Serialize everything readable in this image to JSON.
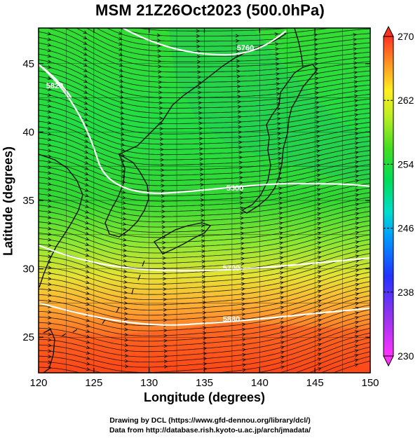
{
  "title": "MSM 21Z26Oct2023 (500.0hPa)",
  "chart_data": {
    "type": "map-streamlines",
    "x_axis": {
      "label": "Longitude (degrees)",
      "range": [
        120,
        150
      ],
      "ticks": [
        "120",
        "125",
        "130",
        "135",
        "140",
        "145",
        "150"
      ]
    },
    "y_axis": {
      "label": "Latitude  (degrees)",
      "range": [
        22.4,
        47.6
      ],
      "ticks": [
        "25",
        "30",
        "35",
        "40",
        "45"
      ]
    },
    "grid": true,
    "colorbar": {
      "min": 230,
      "max": 270,
      "tick_labels": [
        "270",
        "262",
        "254",
        "246",
        "238",
        "230"
      ],
      "position": "right"
    },
    "contour_labels": [
      "5880",
      "5700",
      "5500",
      "5820",
      "5760"
    ],
    "colors": {
      "warm": "#ff2a00",
      "cool": "#00cc33",
      "contour": "#ffffff",
      "coast": "#000000"
    }
  },
  "credits": {
    "line1": "Drawing by DCL (https://www.gfd-dennou.org/library/dcl/)",
    "line2": "Data from http://database.rish.kyoto-u.ac.jp/arch/jmadata/"
  }
}
